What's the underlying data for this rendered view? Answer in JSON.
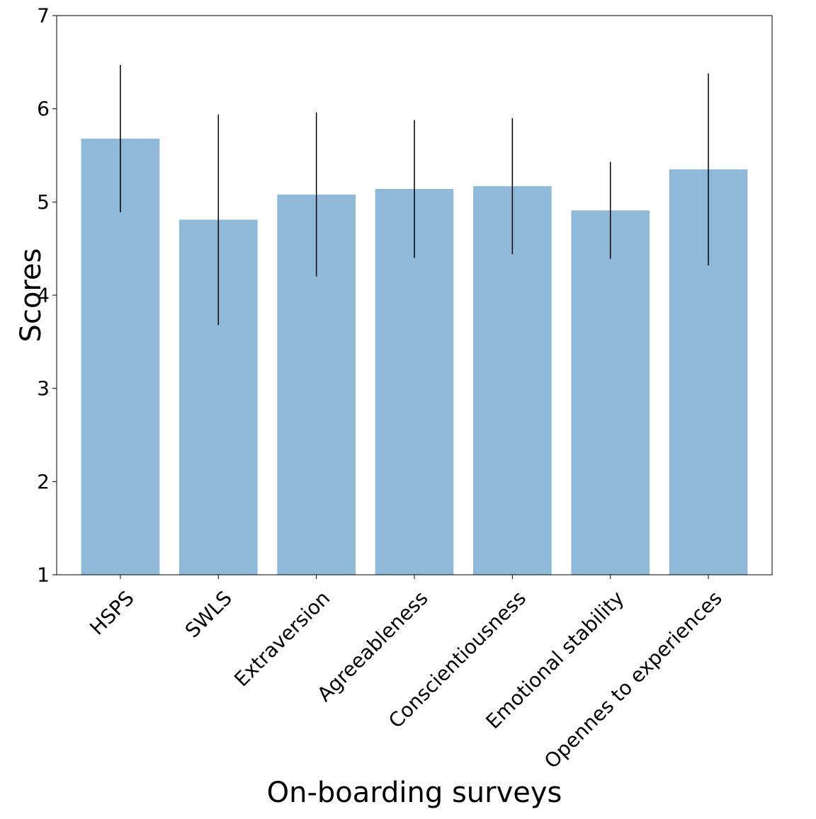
{
  "colors": {
    "bar": "#8fb9d9",
    "error_bar": "#000000",
    "axis": "#000000",
    "background": "#ffffff"
  },
  "chart_data": {
    "type": "bar",
    "title": "",
    "xlabel": "On-boarding surveys",
    "ylabel": "Scores",
    "ylim": [
      1,
      7
    ],
    "yticks": [
      1,
      2,
      3,
      4,
      5,
      6,
      7
    ],
    "grid": false,
    "legend": "none",
    "categories": [
      "HSPS",
      "SWLS",
      "Extraversion",
      "Agreeableness",
      "Conscientiousness",
      "Emotional stability",
      "Opennes to experiences"
    ],
    "values": [
      5.68,
      4.81,
      5.08,
      5.14,
      5.17,
      4.91,
      5.35
    ],
    "error": [
      0.79,
      1.13,
      0.88,
      0.74,
      0.73,
      0.52,
      1.03
    ]
  }
}
